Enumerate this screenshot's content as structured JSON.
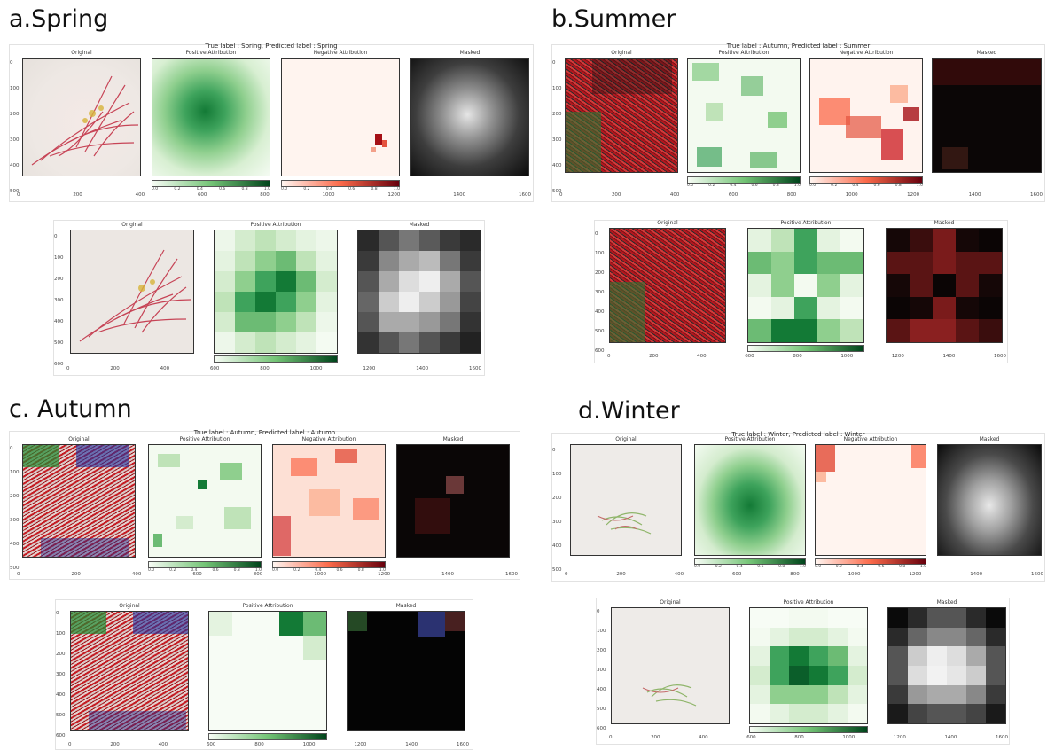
{
  "panels": [
    {
      "key": "a",
      "title": "a.Spring",
      "sup": "True label : Spring, Predicted label : Spring",
      "labels": [
        "Original",
        "Positive Attribution",
        "Negative Attribution",
        "Masked"
      ],
      "labels2": [
        "Original",
        "Positive Attribution",
        "Masked"
      ]
    },
    {
      "key": "b",
      "title": "b.Summer",
      "sup": "True label : Autumn, Predicted label : Summer",
      "labels": [
        "Original",
        "Positive Attribution",
        "Negative Attribution",
        "Masked"
      ],
      "labels2": [
        "Original",
        "Positive Attribution",
        "Masked"
      ]
    },
    {
      "key": "c",
      "title": "c. Autumn",
      "sup": "True label : Autumn, Predicted label : Autumn",
      "labels": [
        "Original",
        "Positive Attribution",
        "Negative Attribution",
        "Masked"
      ],
      "labels2": [
        "Original",
        "Positive Attribution",
        "Masked"
      ]
    },
    {
      "key": "d",
      "title": "d.Winter",
      "sup": "True label : Winter, Predicted label : Winter",
      "labels": [
        "Original",
        "Positive Attribution",
        "Negative Attribution",
        "Masked"
      ],
      "labels2": [
        "Original",
        "Positive Attribution",
        "Masked"
      ]
    }
  ],
  "top_y_ticks": [
    "0",
    "100",
    "200",
    "300",
    "400",
    "500"
  ],
  "top_x_ticks": [
    "0",
    "200",
    "400",
    "600",
    "800",
    "1000",
    "1200",
    "1400",
    "1600"
  ],
  "bottom_y_ticks": [
    "0",
    "100",
    "200",
    "300",
    "400",
    "500",
    "600"
  ],
  "bottom_x_ticks": [
    "0",
    "200",
    "400",
    "600",
    "800",
    "1000",
    "1200",
    "1400",
    "1600"
  ],
  "cbar_ticks": [
    "0.0",
    "0.2",
    "0.4",
    "0.6",
    "0.8",
    "1.0"
  ],
  "colors": {
    "green": "#1b7a3a",
    "red": "#a50f15",
    "light_green": "#f2faf0",
    "light_red": "#fff3ee"
  }
}
